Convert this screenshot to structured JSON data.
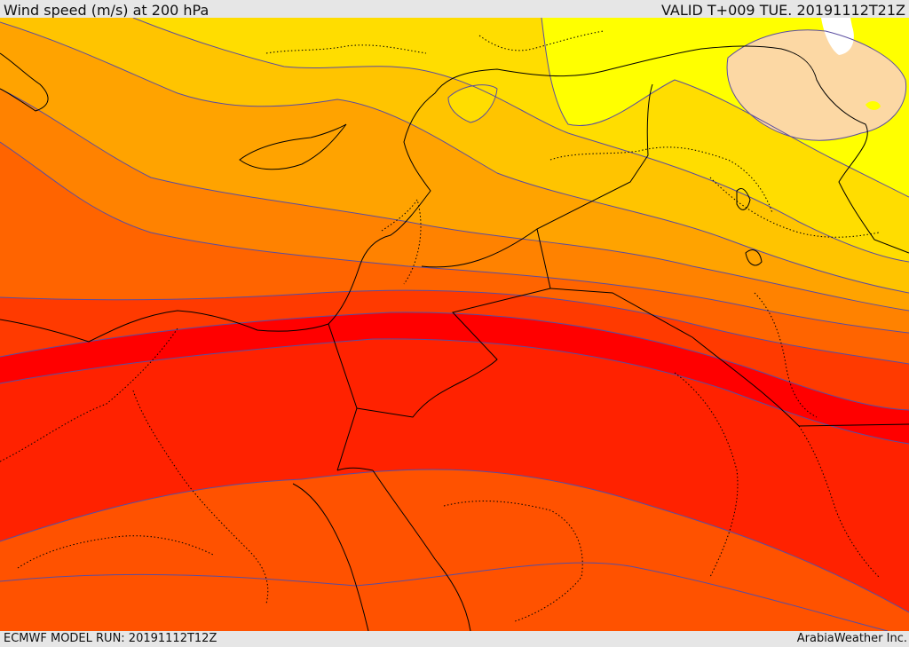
{
  "header": {
    "title": "Wind speed (m/s) at 200 hPa",
    "valid": "VALID T+009 TUE. 20191112T21Z"
  },
  "footer": {
    "model_run": "ECMWF MODEL RUN: 20191112T12Z",
    "credit": "ArabiaWeather Inc."
  },
  "colors": {
    "band_peach": "#fcd8a4",
    "band_yellow": "#ffff00",
    "band_gold": "#ffdd00",
    "band_amber": "#ffc400",
    "band_orange_light": "#ffa300",
    "band_orange": "#ff8200",
    "band_orange_deep": "#ff6400",
    "band_red_orange": "#ff4200",
    "band_red": "#ff2200",
    "band_core": "#ff0000",
    "contour_line": "#5a4da0",
    "border_line": "#000000"
  }
}
